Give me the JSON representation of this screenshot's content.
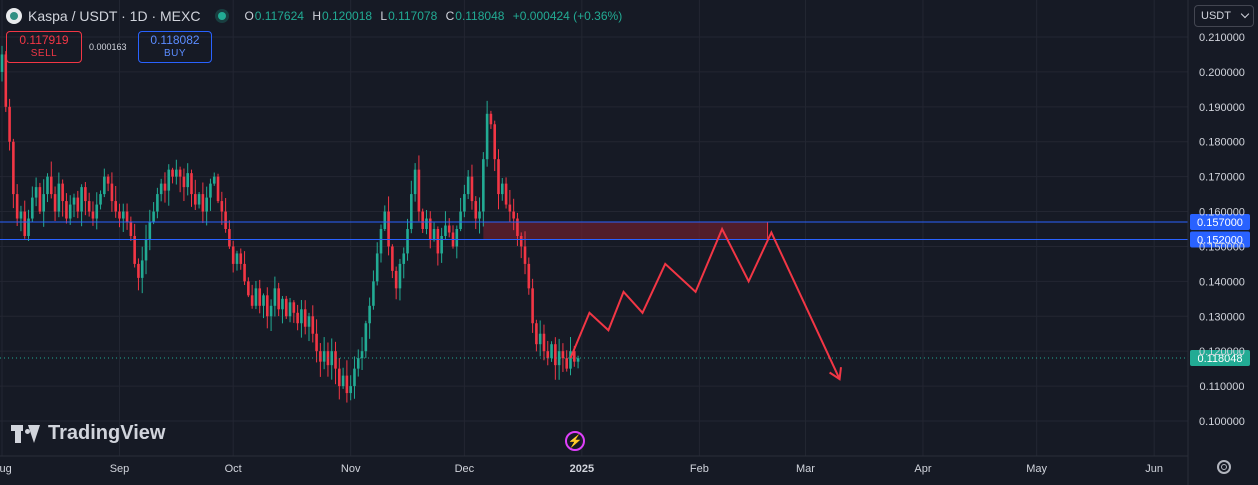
{
  "header": {
    "title": "Kaspa / USDT · 1D · MEXC",
    "ohlc": {
      "o_label": "O",
      "o": "0.117624",
      "h_label": "H",
      "h": "0.120018",
      "l_label": "L",
      "l": "0.117078",
      "c_label": "C",
      "c": "0.118048",
      "change": "+0.000424 (+0.36%)"
    }
  },
  "trade": {
    "sell_price": "0.117919",
    "sell_label": "SELL",
    "spread": "0.000163",
    "buy_price": "0.118082",
    "buy_label": "BUY"
  },
  "currency": "USDT",
  "branding": "TradingView",
  "colors": {
    "background": "#161a25",
    "grid": "#232632",
    "up": "#22ab94",
    "down": "#f23645",
    "level_line": "#2962ff",
    "zone_fill": "#6b1f2e",
    "projection": "#f23645",
    "last_price": "#22ab94"
  },
  "chart_data": {
    "type": "candlestick",
    "y_min": 0.095,
    "y_max": 0.215,
    "y_ticks": [
      "0.100000",
      "0.110000",
      "0.120000",
      "0.130000",
      "0.140000",
      "0.150000",
      "0.160000",
      "0.170000",
      "0.180000",
      "0.190000",
      "0.200000",
      "0.210000"
    ],
    "x_labels": [
      "Aug",
      "Sep",
      "Oct",
      "Nov",
      "Dec",
      "2025",
      "Feb",
      "Mar",
      "Apr",
      "May",
      "Jun"
    ],
    "x_label_days": [
      0,
      31,
      61,
      92,
      122,
      153,
      184,
      212,
      243,
      273,
      304
    ],
    "start_date": "2024-08-01",
    "closes": [
      0.205,
      0.19,
      0.18,
      0.165,
      0.158,
      0.16,
      0.153,
      0.158,
      0.164,
      0.167,
      0.16,
      0.165,
      0.17,
      0.165,
      0.16,
      0.168,
      0.163,
      0.158,
      0.162,
      0.164,
      0.16,
      0.167,
      0.163,
      0.16,
      0.158,
      0.162,
      0.165,
      0.17,
      0.168,
      0.163,
      0.16,
      0.158,
      0.16,
      0.157,
      0.153,
      0.145,
      0.141,
      0.146,
      0.152,
      0.157,
      0.16,
      0.165,
      0.168,
      0.166,
      0.172,
      0.17,
      0.172,
      0.17,
      0.167,
      0.171,
      0.165,
      0.162,
      0.165,
      0.16,
      0.164,
      0.168,
      0.17,
      0.163,
      0.16,
      0.155,
      0.15,
      0.145,
      0.148,
      0.145,
      0.14,
      0.136,
      0.133,
      0.138,
      0.133,
      0.136,
      0.13,
      0.133,
      0.138,
      0.132,
      0.135,
      0.13,
      0.134,
      0.131,
      0.128,
      0.132,
      0.127,
      0.13,
      0.125,
      0.12,
      0.117,
      0.12,
      0.116,
      0.12,
      0.115,
      0.11,
      0.113,
      0.108,
      0.11,
      0.115,
      0.118,
      0.12,
      0.128,
      0.133,
      0.14,
      0.148,
      0.155,
      0.16,
      0.15,
      0.143,
      0.138,
      0.145,
      0.148,
      0.155,
      0.165,
      0.172,
      0.16,
      0.155,
      0.158,
      0.152,
      0.155,
      0.148,
      0.153,
      0.156,
      0.154,
      0.15,
      0.155,
      0.16,
      0.165,
      0.17,
      0.163,
      0.158,
      0.16,
      0.175,
      0.188,
      0.185,
      0.175,
      0.165,
      0.168,
      0.162,
      0.16,
      0.158,
      0.153,
      0.15,
      0.145,
      0.138,
      0.128,
      0.122,
      0.125,
      0.12,
      0.118,
      0.122,
      0.116,
      0.12,
      0.118,
      0.115,
      0.12,
      0.117,
      0.118
    ],
    "levels": [
      0.157,
      0.152
    ],
    "level_labels": [
      "0.157000",
      "0.152000"
    ],
    "zone": {
      "from_day": 127,
      "to_day": 202,
      "low": 0.152,
      "high": 0.157
    },
    "projection": {
      "days": [
        150,
        155,
        160,
        164,
        169,
        175,
        183,
        190,
        197,
        203,
        221
      ],
      "prices": [
        0.118,
        0.131,
        0.126,
        0.137,
        0.131,
        0.145,
        0.137,
        0.155,
        0.14,
        0.154,
        0.112
      ]
    },
    "last_price": 0.118048,
    "last_price_label": "0.118048"
  }
}
